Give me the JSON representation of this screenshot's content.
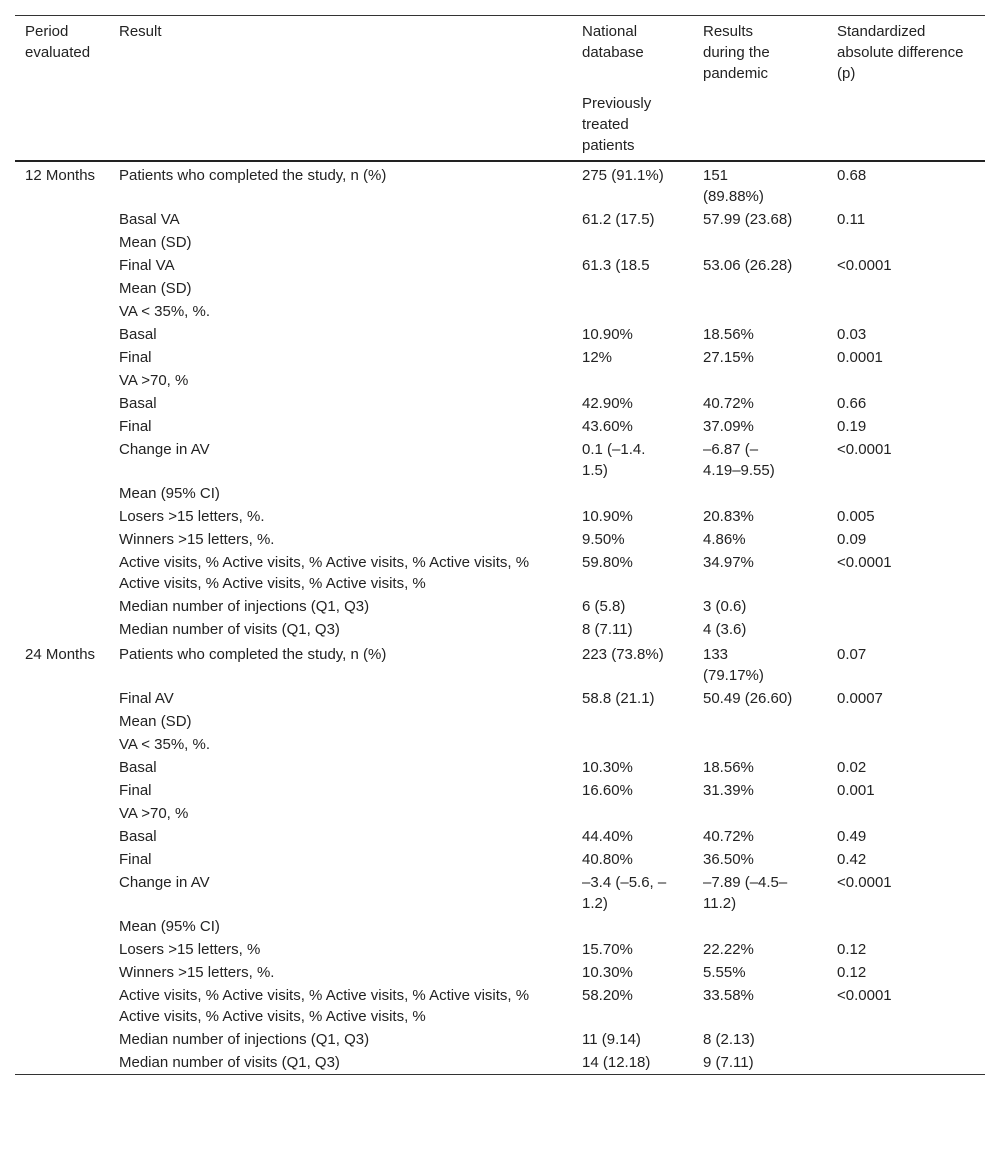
{
  "table": {
    "header": {
      "columns": [
        "Period evaluated",
        "Result",
        "National database",
        "Results during the pandemic",
        "Standardized absolute difference (p)"
      ],
      "subheader": "Previously treated patients"
    },
    "groups": [
      {
        "period": "12 Months",
        "rows": [
          {
            "result": "Patients who completed the study, n (%)",
            "national": "275 (91.1%)",
            "pandemic": "151 (89.88%)",
            "p": "0.68"
          },
          {
            "result": "Basal VA",
            "national": "61.2 (17.5)",
            "pandemic": "57.99 (23.68)",
            "p": "0.11"
          },
          {
            "result": "Mean (SD)"
          },
          {
            "result": "Final VA",
            "national": "61.3 (18.5",
            "pandemic": "53.06 (26.28)",
            "p": "<0.0001"
          },
          {
            "result": "Mean (SD)"
          },
          {
            "result": "VA < 35%, %."
          },
          {
            "result": "Basal",
            "national": "10.90%",
            "pandemic": "18.56%",
            "p": "0.03"
          },
          {
            "result": "Final",
            "national": "12%",
            "pandemic": "27.15%",
            "p": "0.0001"
          },
          {
            "result": "VA >70, %"
          },
          {
            "result": "Basal",
            "national": "42.90%",
            "pandemic": "40.72%",
            "p": "0.66"
          },
          {
            "result": "Final",
            "national": "43.60%",
            "pandemic": "37.09%",
            "p": "0.19"
          },
          {
            "result": "Change in AV",
            "national": "0.1 (–1.4. 1.5)",
            "pandemic": "–6.87 (–4.19–9.55)",
            "p": "<0.0001"
          },
          {
            "result": "Mean (95% CI)"
          },
          {
            "result": "Losers >15 letters, %.",
            "national": "10.90%",
            "pandemic": "20.83%",
            "p": "0.005"
          },
          {
            "result": "Winners >15 letters, %.",
            "national": "9.50%",
            "pandemic": "4.86%",
            "p": "0.09"
          },
          {
            "result": "Active visits, % Active visits, % Active visits, % Active visits, % Active visits, % Active visits, % Active visits, %",
            "national": "59.80%",
            "pandemic": "34.97%",
            "p": "<0.0001"
          },
          {
            "result": "Median number of injections (Q1, Q3)",
            "national": "6 (5.8)",
            "pandemic": "3 (0.6)"
          },
          {
            "result": "Median number of visits (Q1, Q3)",
            "national": "8 (7.11)",
            "pandemic": "4 (3.6)"
          }
        ]
      },
      {
        "period": "24 Months",
        "rows": [
          {
            "result": "Patients who completed the study, n (%)",
            "national": "223 (73.8%)",
            "pandemic": "133 (79.17%)",
            "p": "0.07"
          },
          {
            "result": "Final AV",
            "national": "58.8 (21.1)",
            "pandemic": "50.49 (26.60)",
            "p": "0.0007"
          },
          {
            "result": "Mean (SD)"
          },
          {
            "result": "VA < 35%, %."
          },
          {
            "result": "Basal",
            "national": "10.30%",
            "pandemic": "18.56%",
            "p": "0.02"
          },
          {
            "result": "Final",
            "national": "16.60%",
            "pandemic": "31.39%",
            "p": "0.001"
          },
          {
            "result": "VA >70, %"
          },
          {
            "result": "Basal",
            "national": "44.40%",
            "pandemic": "40.72%",
            "p": "0.49"
          },
          {
            "result": "Final",
            "national": "40.80%",
            "pandemic": "36.50%",
            "p": "0.42"
          },
          {
            "result": "Change in AV",
            "national": "–3.4 (–5.6, –1.2)",
            "pandemic": "–7.89 (–4.5–11.2)",
            "p": "<0.0001"
          },
          {
            "result": "Mean (95% CI)"
          },
          {
            "result": "Losers >15 letters, %",
            "national": "15.70%",
            "pandemic": "22.22%",
            "p": "0.12"
          },
          {
            "result": "Winners >15 letters, %.",
            "national": "10.30%",
            "pandemic": "5.55%",
            "p": "0.12"
          },
          {
            "result": "Active visits, % Active visits, % Active visits, % Active visits, % Active visits, % Active visits, % Active visits, %",
            "national": "58.20%",
            "pandemic": "33.58%",
            "p": "<0.0001"
          },
          {
            "result": "Median number of injections (Q1, Q3)",
            "national": "11 (9.14)",
            "pandemic": "8 (2.13)"
          },
          {
            "result": "Median number of visits (Q1, Q3)",
            "national": "14 (12.18)",
            "pandemic": "9 (7.11)"
          }
        ]
      }
    ]
  }
}
